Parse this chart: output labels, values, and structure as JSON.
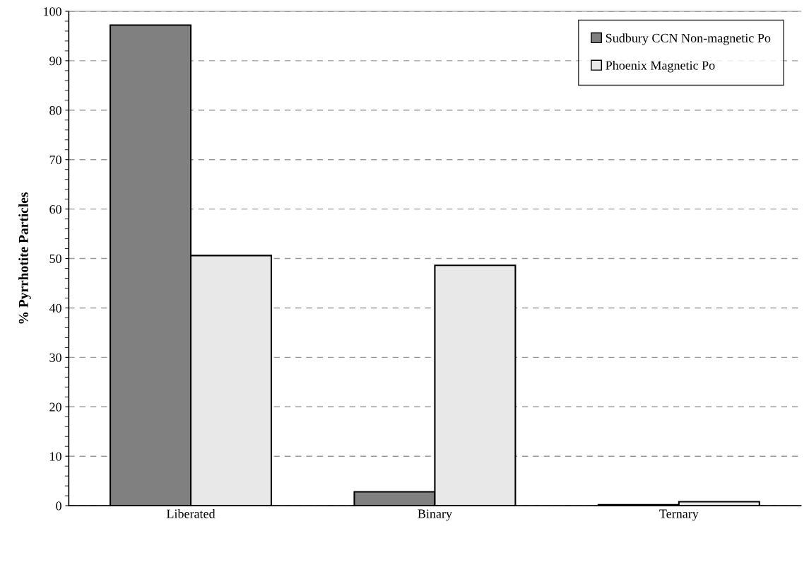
{
  "chart_data": {
    "type": "bar",
    "ylabel": "% Pyrrhotite Particles",
    "categories": [
      "Liberated",
      "Binary",
      "Ternary"
    ],
    "series": [
      {
        "name": "Sudbury CCN Non-magnetic Po",
        "color": "#808080",
        "values": [
          97.2,
          2.8,
          0.2
        ]
      },
      {
        "name": "Phoenix Magnetic Po",
        "color": "#e8e8e8",
        "values": [
          50.6,
          48.6,
          0.8
        ]
      }
    ],
    "ylim": [
      0,
      100
    ],
    "yticks": [
      0,
      10,
      20,
      30,
      40,
      50,
      60,
      70,
      80,
      90,
      100
    ],
    "grid": "y",
    "legend": "top right"
  }
}
